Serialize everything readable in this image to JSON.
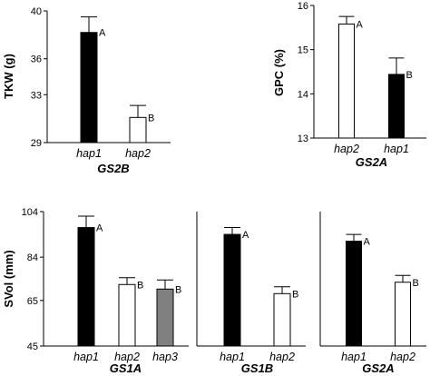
{
  "chart_data": [
    {
      "type": "bar",
      "ylabel": "TKW (g)",
      "xlabel": "GS2B",
      "ylim": [
        29,
        40
      ],
      "yticks": [
        29,
        33,
        36,
        40
      ],
      "categories": [
        "hap1",
        "hap2"
      ],
      "values": [
        38.2,
        31.1
      ],
      "errors": [
        1.3,
        1.0
      ],
      "letters": [
        "A",
        "B"
      ],
      "fills": [
        "#000000",
        "#ffffff"
      ]
    },
    {
      "type": "bar",
      "ylabel": "GPC (%)",
      "xlabel": "GS2A",
      "ylim": [
        13,
        16
      ],
      "yticks": [
        13,
        14,
        15,
        16
      ],
      "categories": [
        "hap2",
        "hap1"
      ],
      "values": [
        15.58,
        14.44
      ],
      "errors": [
        0.17,
        0.37
      ],
      "letters": [
        "A",
        "B"
      ],
      "fills": [
        "#ffffff",
        "#000000"
      ]
    },
    {
      "type": "bar",
      "ylabel": "SVol (mm)",
      "xlabel": "GS1A",
      "ylim": [
        45,
        104
      ],
      "yticks": [
        45,
        65,
        84,
        104
      ],
      "categories": [
        "hap1",
        "hap2",
        "hap3"
      ],
      "values": [
        97,
        72,
        70
      ],
      "errors": [
        5,
        3,
        4
      ],
      "letters": [
        "A",
        "B",
        "B"
      ],
      "fills": [
        "#000000",
        "#ffffff",
        "#808080"
      ]
    },
    {
      "type": "bar",
      "ylabel": "",
      "xlabel": "GS1B",
      "ylim": [
        45,
        104
      ],
      "yticks": [],
      "categories": [
        "hap1",
        "hap2"
      ],
      "values": [
        94,
        68
      ],
      "errors": [
        3,
        3
      ],
      "letters": [
        "A",
        "B"
      ],
      "fills": [
        "#000000",
        "#ffffff"
      ]
    },
    {
      "type": "bar",
      "ylabel": "",
      "xlabel": "GS2A",
      "ylim": [
        45,
        104
      ],
      "yticks": [],
      "categories": [
        "hap1",
        "hap2"
      ],
      "values": [
        91,
        73
      ],
      "errors": [
        3,
        3
      ],
      "letters": [
        "A",
        "B"
      ],
      "fills": [
        "#000000",
        "#ffffff"
      ]
    }
  ]
}
